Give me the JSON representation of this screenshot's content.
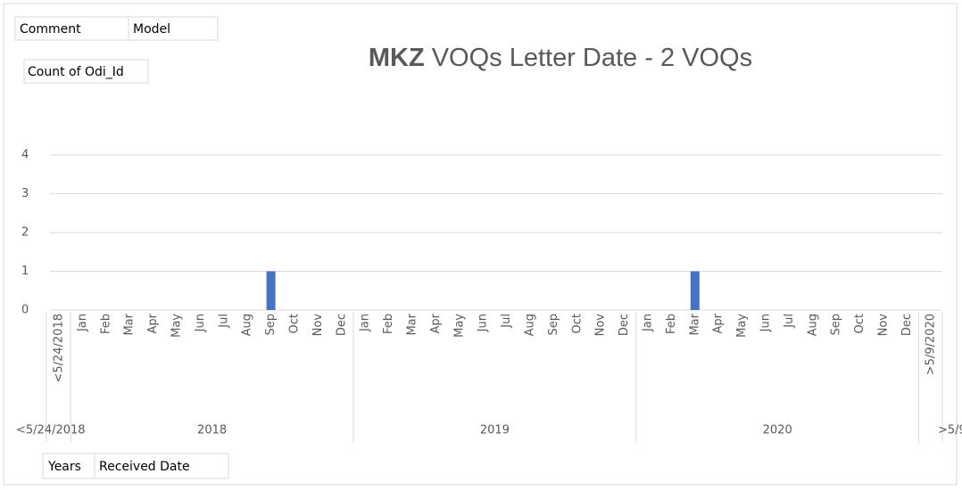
{
  "chart_data": {
    "type": "bar",
    "title_bold": "MKZ",
    "title": "VOQs Letter Date - 2 VOQs",
    "filter_fields": [
      "Comment",
      "Model"
    ],
    "value_field": "Count of Odi_Id",
    "axis_fields": [
      "Years",
      "Received Date"
    ],
    "color": "#4472c4",
    "ylim": [
      0,
      4
    ],
    "yticks": [
      0,
      1,
      2,
      3,
      4
    ],
    "grid": true,
    "groups": [
      {
        "name": "<5/24/2018",
        "categories": [
          "<5/24/2018"
        ],
        "values": [
          0
        ]
      },
      {
        "name": "2018",
        "categories": [
          "Jan",
          "Feb",
          "Mar",
          "Apr",
          "May",
          "Jun",
          "Jul",
          "Aug",
          "Sep",
          "Oct",
          "Nov",
          "Dec"
        ],
        "values": [
          0,
          0,
          0,
          0,
          0,
          0,
          0,
          0,
          1,
          0,
          0,
          0
        ]
      },
      {
        "name": "2019",
        "categories": [
          "Jan",
          "Feb",
          "Mar",
          "Apr",
          "May",
          "Jun",
          "Jul",
          "Aug",
          "Sep",
          "Oct",
          "Nov",
          "Dec"
        ],
        "values": [
          0,
          0,
          0,
          0,
          0,
          0,
          0,
          0,
          0,
          0,
          0,
          0
        ]
      },
      {
        "name": "2020",
        "categories": [
          "Jan",
          "Feb",
          "Mar",
          "Apr",
          "May",
          "Jun",
          "Jul",
          "Aug",
          "Sep",
          "Oct",
          "Nov",
          "Dec"
        ],
        "values": [
          0,
          0,
          1,
          0,
          0,
          0,
          0,
          0,
          0,
          0,
          0,
          0
        ]
      },
      {
        "name": ">5/9/2020",
        "categories": [
          ">5/9/2020"
        ],
        "values": [
          0
        ]
      }
    ]
  }
}
